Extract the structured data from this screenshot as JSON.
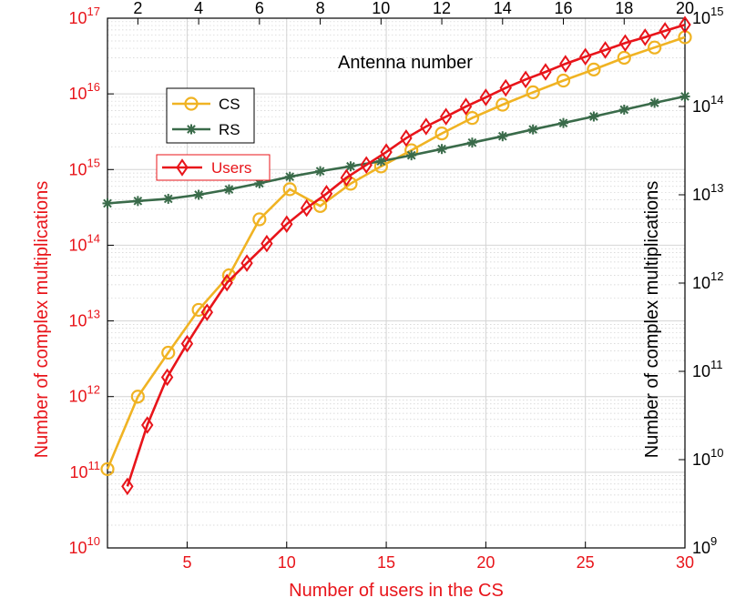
{
  "chart_data": {
    "type": "line",
    "yscale": "log",
    "bottom_axis": {
      "label": "Number of users in the CS",
      "range": [
        1,
        30
      ],
      "ticks": [
        5,
        10,
        15,
        20,
        25,
        30
      ],
      "color": "#e8141a"
    },
    "top_axis": {
      "label": "Antenna number",
      "range": [
        1,
        20
      ],
      "ticks": [
        2,
        4,
        6,
        8,
        10,
        12,
        14,
        16,
        18,
        20
      ],
      "color": "#000000"
    },
    "left_axis": {
      "label": "Number of complex multiplications",
      "range_exp": [
        10,
        17
      ],
      "tick_exps": [
        10,
        11,
        12,
        13,
        14,
        15,
        16,
        17
      ],
      "color": "#e8141a"
    },
    "right_axis": {
      "label": "Number of complex multiplications",
      "range_exp": [
        9,
        15
      ],
      "tick_exps": [
        9,
        10,
        11,
        12,
        13,
        14,
        15
      ],
      "color": "#000000"
    },
    "tick_base": "10",
    "grid": true,
    "legend_top": {
      "position": "top-left",
      "entries": [
        "CS",
        "RS"
      ]
    },
    "legend_users": {
      "position": "upper-left",
      "entries": [
        "Users"
      ]
    },
    "series": [
      {
        "name": "CS",
        "color": "#f0b323",
        "marker": "circle",
        "x_axis": "top",
        "y_axis": "left",
        "x": [
          1,
          2,
          3,
          4,
          5,
          6,
          7,
          8,
          9,
          10,
          11,
          12,
          13,
          14,
          15,
          16,
          17,
          18,
          19,
          20
        ],
        "y": [
          110000000000.0,
          1000000000000.0,
          3800000000000.0,
          14000000000000.0,
          40000000000000.0,
          220000000000000.0,
          550000000000000.0,
          330000000000000.0,
          650000000000000.0,
          1100000000000000.0,
          1800000000000000.0,
          3000000000000000.0,
          4800000000000000.0,
          7200000000000000.0,
          1.05e+16,
          1.5e+16,
          2.1e+16,
          3e+16,
          4.1e+16,
          5.6e+16
        ]
      },
      {
        "name": "RS",
        "color": "#3a6b4a",
        "marker": "star",
        "x_axis": "top",
        "y_axis": "right",
        "x": [
          1,
          2,
          3,
          4,
          5,
          6,
          7,
          8,
          9,
          10,
          11,
          12,
          13,
          14,
          15,
          16,
          17,
          18,
          19,
          20
        ],
        "y": [
          8000000000000.0,
          8500000000000.0,
          9000000000000.0,
          10000000000000.0,
          11500000000000.0,
          13500000000000.0,
          16000000000000.0,
          18500000000000.0,
          21000000000000.0,
          24000000000000.0,
          28000000000000.0,
          33000000000000.0,
          39000000000000.0,
          46000000000000.0,
          55000000000000.0,
          65000000000000.0,
          77000000000000.0,
          92000000000000.0,
          110000000000000.0,
          130000000000000.0
        ]
      },
      {
        "name": "Users",
        "color": "#e8141a",
        "marker": "diamond",
        "x_axis": "bottom",
        "y_axis": "left",
        "x": [
          2,
          3,
          4,
          5,
          6,
          7,
          8,
          9,
          10,
          11,
          12,
          13,
          14,
          15,
          16,
          17,
          18,
          19,
          20,
          21,
          22,
          23,
          24,
          25,
          26,
          27,
          28,
          29,
          30
        ],
        "y": [
          65000000000.0,
          420000000000.0,
          1800000000000.0,
          5000000000000.0,
          13000000000000.0,
          32000000000000.0,
          58000000000000.0,
          105000000000000.0,
          190000000000000.0,
          310000000000000.0,
          480000000000000.0,
          780000000000000.0,
          1150000000000000.0,
          1700000000000000.0,
          2600000000000000.0,
          3700000000000000.0,
          5000000000000000.0,
          6800000000000000.0,
          9000000000000000.0,
          1.2e+16,
          1.55e+16,
          1.95e+16,
          2.5e+16,
          3.1e+16,
          3.8e+16,
          4.7e+16,
          5.6e+16,
          6.8e+16,
          8.2e+16
        ]
      }
    ]
  }
}
